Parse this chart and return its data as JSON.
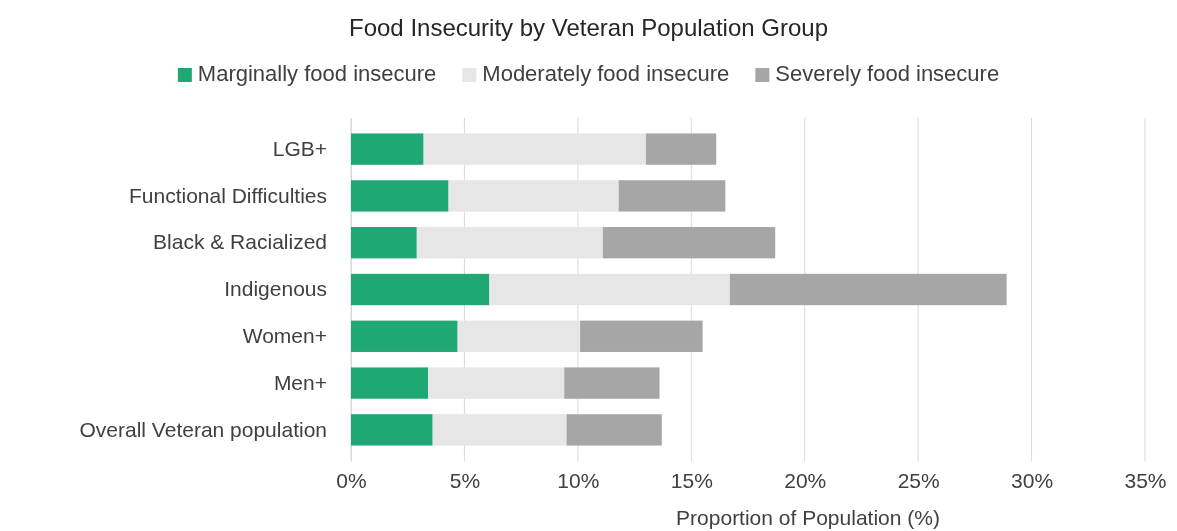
{
  "chart_data": {
    "type": "bar",
    "orientation": "horizontal",
    "stacked": true,
    "title": "Food Insecurity by Veteran Population Group",
    "xlabel": "Proportion of Population (%)",
    "categories": [
      "LGB+",
      "Functional Difficulties",
      "Black & Racialized",
      "Indigenous",
      "Women+",
      "Men+",
      "Overall Veteran population"
    ],
    "series": [
      {
        "name": "Marginally food insecure",
        "color": "#1fa774",
        "values": [
          3.2,
          4.3,
          2.9,
          6.1,
          4.7,
          3.4,
          3.6
        ]
      },
      {
        "name": "Moderately food insecure",
        "color": "#e6e6e6",
        "values": [
          9.8,
          7.5,
          8.2,
          10.6,
          5.4,
          6.0,
          5.9
        ]
      },
      {
        "name": "Severely food insecure",
        "color": "#a6a6a6",
        "values": [
          3.1,
          4.7,
          7.6,
          12.2,
          5.4,
          4.2,
          4.2
        ]
      }
    ],
    "xlim": [
      0,
      35
    ],
    "xticks": [
      {
        "value": 0,
        "label": "0%"
      },
      {
        "value": 5,
        "label": "5%"
      },
      {
        "value": 10,
        "label": "10%"
      },
      {
        "value": 15,
        "label": "15%"
      },
      {
        "value": 20,
        "label": "20%"
      },
      {
        "value": 25,
        "label": "25%"
      },
      {
        "value": 30,
        "label": "30%"
      },
      {
        "value": 35,
        "label": "35%"
      }
    ],
    "grid": "x",
    "legend": "top"
  }
}
